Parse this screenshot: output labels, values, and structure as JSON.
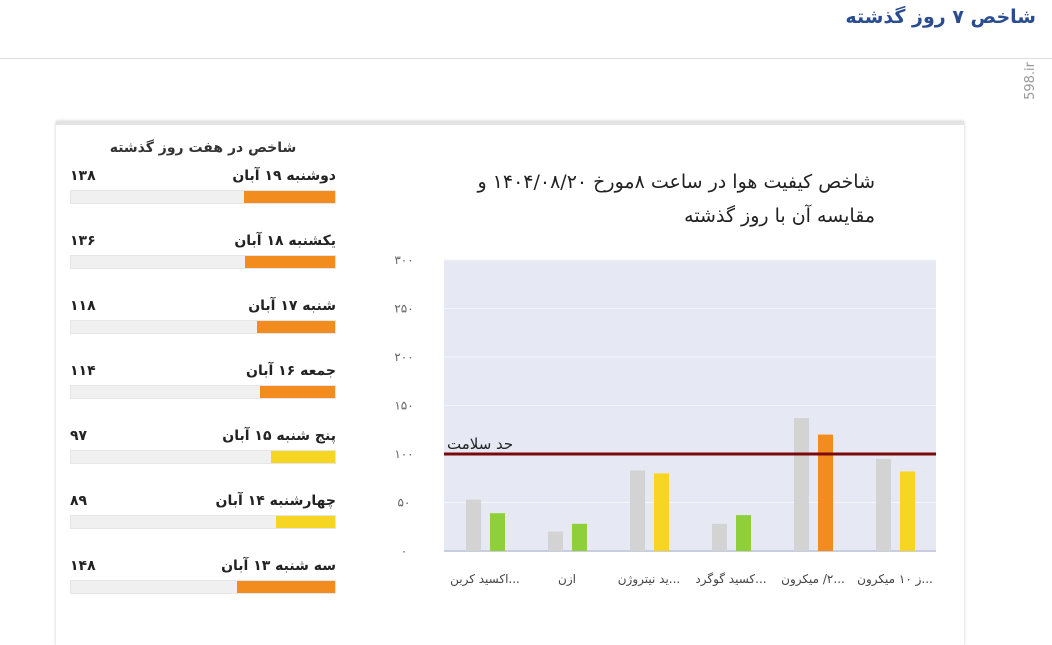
{
  "header": {
    "title": "شاخص ۷ روز گذشته",
    "watermark": "598.ir"
  },
  "side": {
    "title": "شاخص در هفت روز گذشته",
    "max": 400,
    "items": [
      {
        "label": "دوشنبه ۱۹ آبان",
        "value": "۱۳۸",
        "num": 138,
        "color": "#f28c1e"
      },
      {
        "label": "یکشنبه ۱۸ آبان",
        "value": "۱۳۶",
        "num": 136,
        "color": "#f28c1e"
      },
      {
        "label": "شنبه ۱۷ آبان",
        "value": "۱۱۸",
        "num": 118,
        "color": "#f28c1e"
      },
      {
        "label": "جمعه ۱۶ آبان",
        "value": "۱۱۴",
        "num": 114,
        "color": "#f28c1e"
      },
      {
        "label": "پنج شنبه ۱۵ آبان",
        "value": "۹۷",
        "num": 97,
        "color": "#f7d623"
      },
      {
        "label": "چهارشنبه ۱۴ آبان",
        "value": "۸۹",
        "num": 89,
        "color": "#f7d623"
      },
      {
        "label": "سه شنبه ۱۳ آبان",
        "value": "۱۴۸",
        "num": 148,
        "color": "#f28c1e"
      }
    ]
  },
  "chart_data": {
    "type": "bar",
    "title_line1": "شاخص کیفیت هوا در ساعت ۸مورخ ۱۴۰۴/۰۸/۲۰ و",
    "title_line2": "مقایسه آن با روز گذشته",
    "categories": [
      "...اکسید کربن",
      "ازن",
      "...ید نیتروژن",
      "...کسید گوگرد",
      "...۲/ میکرون",
      "...ز ۱۰ میکرون"
    ],
    "ylim": [
      0,
      300
    ],
    "yticks": [
      {
        "v": 0,
        "t": "۰"
      },
      {
        "v": 50,
        "t": "۵۰"
      },
      {
        "v": 100,
        "t": "۱۰۰"
      },
      {
        "v": 150,
        "t": "۱۵۰"
      },
      {
        "v": 200,
        "t": "۲۰۰"
      },
      {
        "v": 250,
        "t": "۲۵۰"
      },
      {
        "v": 300,
        "t": "۳۰۰"
      }
    ],
    "series": [
      {
        "values": [
          53,
          20,
          83,
          28,
          137,
          95
        ],
        "colors": [
          "#d3d3d3",
          "#d3d3d3",
          "#d3d3d3",
          "#d3d3d3",
          "#d3d3d3",
          "#d3d3d3"
        ]
      },
      {
        "values": [
          39,
          28,
          80,
          37,
          120,
          82
        ],
        "colors": [
          "#8fd03a",
          "#8fd03a",
          "#f7d623",
          "#8fd03a",
          "#f28c1e",
          "#f7d623"
        ]
      }
    ],
    "threshold": {
      "value": 100,
      "label": "حد سلامت",
      "color": "#7a0a0a"
    },
    "plot_bg": "#e6e9f4",
    "grid": true
  }
}
